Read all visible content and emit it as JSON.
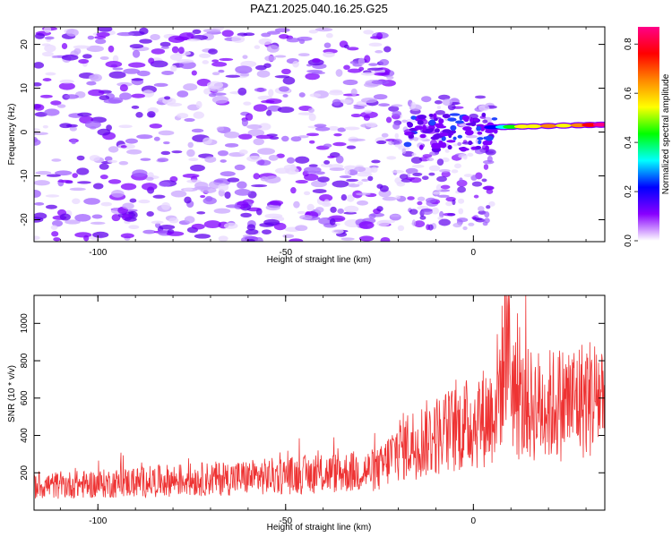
{
  "chart_data": [
    {
      "type": "heatmap",
      "title": "PAZ1.2025.040.16.25.G25",
      "xlabel": "Height of straight line (km)",
      "ylabel": "Frequency (Hz)",
      "xlim": [
        -117,
        35
      ],
      "ylim": [
        -25,
        24
      ],
      "x_ticks": [
        -100,
        -50,
        0
      ],
      "y_ticks": [
        -20,
        -10,
        0,
        10,
        20
      ],
      "colorbar": {
        "label": "Normalized spectral amplitude",
        "range": [
          0,
          0.87
        ],
        "ticks": [
          0.0,
          0.2,
          0.4,
          0.6,
          0.8
        ],
        "colors": [
          "#ffffff",
          "#8800ff",
          "#0000ff",
          "#00ffff",
          "#00ff00",
          "#ffff00",
          "#ff8800",
          "#ff0000",
          "#ff0088"
        ]
      },
      "features": [
        {
          "x_range": [
            -117,
            -25
          ],
          "y_range": [
            -25,
            24
          ],
          "amplitude_range": [
            0.0,
            0.12
          ]
        },
        {
          "x_range": [
            -25,
            5
          ],
          "y_range": [
            -10,
            5
          ],
          "amplitude_range": [
            0.05,
            0.25
          ]
        },
        {
          "x_range": [
            5,
            35
          ],
          "y_range": [
            0,
            3
          ],
          "amplitude_range": [
            0.2,
            0.87
          ]
        }
      ],
      "grid": false
    },
    {
      "type": "line",
      "xlabel": "Height of straight line (km)",
      "ylabel": "SNR (10 * v/v)",
      "xlim": [
        -117,
        35
      ],
      "ylim": [
        0,
        1150
      ],
      "x_ticks": [
        -100,
        -50,
        0
      ],
      "y_ticks": [
        200,
        400,
        600,
        800,
        1000
      ],
      "color": "#ee3333",
      "series": [
        {
          "x": [
            -117,
            -100,
            -80,
            -60,
            -40,
            -25,
            -20,
            -10,
            0,
            5,
            8,
            9,
            10,
            12,
            20,
            35
          ],
          "y": [
            130,
            140,
            160,
            175,
            195,
            215,
            330,
            400,
            470,
            520,
            750,
            1100,
            720,
            560,
            560,
            620
          ]
        }
      ],
      "grid": false
    }
  ]
}
